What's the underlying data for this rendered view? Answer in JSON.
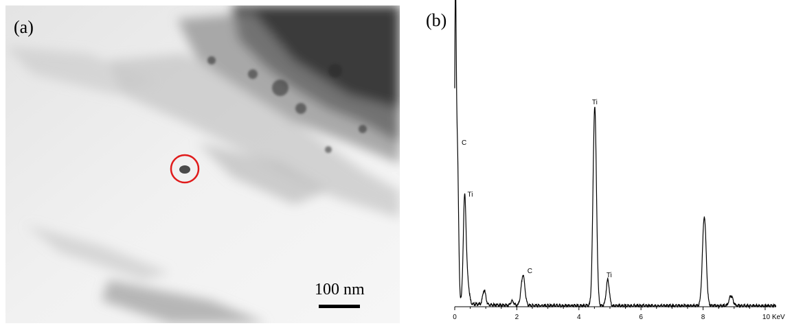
{
  "panel_a": {
    "label": "(a)",
    "scale_bar_text": "100 nm"
  },
  "panel_b": {
    "label": "(b)"
  },
  "chart_data": {
    "type": "line",
    "xlabel": "",
    "ylabel": "",
    "xlim": [
      0,
      10.6
    ],
    "ylim": [
      0,
      100
    ],
    "x_tick_labels": [
      "0",
      "2",
      "4",
      "6",
      "8",
      "10 KeV"
    ],
    "x_ticks": [
      0,
      2,
      4,
      6,
      8,
      10
    ],
    "peaks": [
      {
        "label": "",
        "x": 0.02,
        "height": 92,
        "width": 0.025
      },
      {
        "label": "C",
        "x": 0.08,
        "height": 55,
        "width": 0.04
      },
      {
        "label": "Ti",
        "x": 0.32,
        "height": 37,
        "width": 0.045
      },
      {
        "label": "",
        "x": 0.42,
        "height": 7,
        "width": 0.05
      },
      {
        "label": "",
        "x": 0.95,
        "height": 5,
        "width": 0.05
      },
      {
        "label": "",
        "x": 1.85,
        "height": 1.5,
        "width": 0.05
      },
      {
        "label": "C",
        "x": 2.2,
        "height": 10.5,
        "width": 0.06
      },
      {
        "label": "Ti",
        "x": 4.51,
        "height": 69,
        "width": 0.055
      },
      {
        "label": "Ti",
        "x": 4.93,
        "height": 9,
        "width": 0.05
      },
      {
        "label": "",
        "x": 8.04,
        "height": 31,
        "width": 0.06
      },
      {
        "label": "",
        "x": 8.9,
        "height": 3.5,
        "width": 0.06
      }
    ],
    "annotations": [
      {
        "text": "C",
        "x": 0.08
      },
      {
        "text": "Ti",
        "x": 0.32
      },
      {
        "text": "C",
        "x": 2.2
      },
      {
        "text": "Ti",
        "x": 4.51
      },
      {
        "text": "Ti",
        "x": 4.93
      }
    ]
  }
}
